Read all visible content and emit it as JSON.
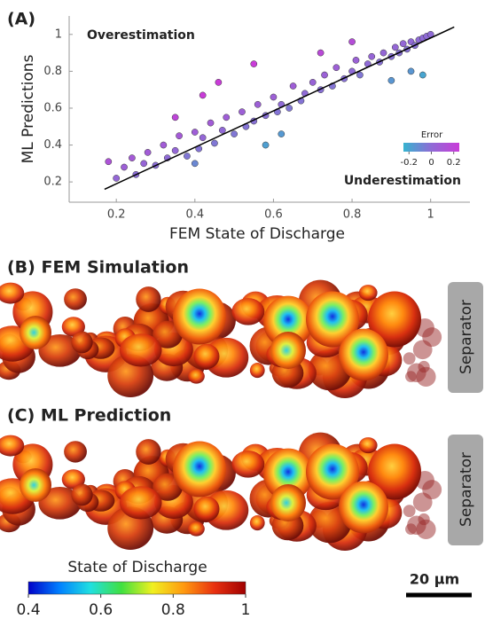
{
  "chart_data": {
    "type": "scatter",
    "panel_label": "(A)",
    "xlabel": "FEM State of Discharge",
    "ylabel": "ML Predictions",
    "annotations": [
      "Overestimation",
      "Underestimation"
    ],
    "x": [
      0.18,
      0.2,
      0.22,
      0.24,
      0.25,
      0.27,
      0.28,
      0.3,
      0.32,
      0.33,
      0.35,
      0.36,
      0.38,
      0.4,
      0.41,
      0.42,
      0.44,
      0.45,
      0.47,
      0.48,
      0.5,
      0.52,
      0.53,
      0.55,
      0.56,
      0.58,
      0.6,
      0.61,
      0.62,
      0.64,
      0.65,
      0.67,
      0.68,
      0.7,
      0.72,
      0.73,
      0.75,
      0.76,
      0.78,
      0.8,
      0.81,
      0.82,
      0.84,
      0.85,
      0.87,
      0.88,
      0.9,
      0.91,
      0.92,
      0.93,
      0.94,
      0.95,
      0.96,
      0.97,
      0.98,
      0.99,
      1.0,
      0.42,
      0.46,
      0.35,
      0.55,
      0.72,
      0.8,
      0.95,
      0.98,
      0.9,
      0.62,
      0.4,
      0.58
    ],
    "y": [
      0.31,
      0.22,
      0.28,
      0.33,
      0.24,
      0.3,
      0.36,
      0.29,
      0.4,
      0.33,
      0.37,
      0.45,
      0.34,
      0.47,
      0.38,
      0.44,
      0.52,
      0.41,
      0.48,
      0.55,
      0.46,
      0.58,
      0.5,
      0.53,
      0.62,
      0.56,
      0.66,
      0.58,
      0.62,
      0.6,
      0.72,
      0.64,
      0.68,
      0.74,
      0.7,
      0.78,
      0.72,
      0.82,
      0.76,
      0.8,
      0.86,
      0.78,
      0.84,
      0.88,
      0.85,
      0.9,
      0.88,
      0.93,
      0.9,
      0.95,
      0.92,
      0.96,
      0.94,
      0.97,
      0.98,
      0.99,
      1.0,
      0.67,
      0.74,
      0.55,
      0.84,
      0.9,
      0.96,
      0.8,
      0.78,
      0.75,
      0.46,
      0.3,
      0.4
    ],
    "fit_line": {
      "x": [
        0.17,
        1.06
      ],
      "y": [
        0.16,
        1.04
      ]
    },
    "xlim": [
      0.08,
      1.1
    ],
    "ylim": [
      0.09,
      1.1
    ],
    "xticks": [
      0.2,
      0.4,
      0.6,
      0.8,
      1
    ],
    "yticks": [
      0.2,
      0.4,
      0.6,
      0.8,
      1
    ],
    "colorbar": {
      "title": "Error",
      "lim": [
        -0.25,
        0.25
      ],
      "ticks": [
        -0.2,
        0,
        0.2
      ],
      "colors": [
        "#36b3cf",
        "#8f6bd6",
        "#c93cd8"
      ]
    }
  },
  "panels": [
    {
      "label": "(B)  FEM Simulation",
      "separator": "Separator"
    },
    {
      "label": "(C)  ML Prediction",
      "separator": "Separator"
    }
  ],
  "sod_colorbar": {
    "title": "State of Discharge",
    "lim": [
      0.4,
      1
    ],
    "ticks": [
      0.4,
      0.6,
      0.8,
      1
    ],
    "colors": [
      "#0000c8",
      "#0080ff",
      "#20e0e0",
      "#40e040",
      "#f0f020",
      "#ff9a10",
      "#e83010",
      "#a00000"
    ]
  },
  "scale_bar": "20 µm"
}
